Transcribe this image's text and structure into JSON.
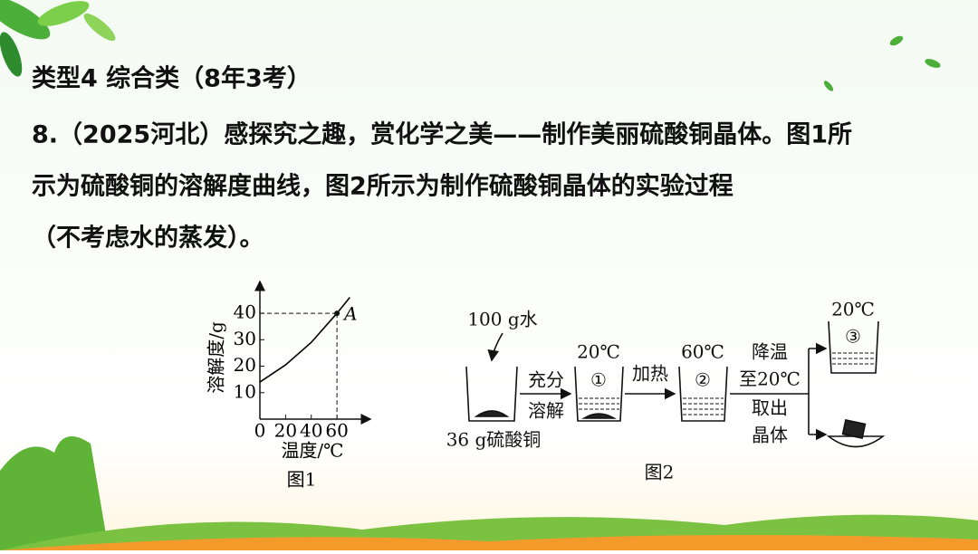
{
  "header": {
    "title": "类型4 综合类（8年3考）"
  },
  "question": {
    "lines": [
      "8.（2025河北）感探究之趣，赏化学之美——制作美丽硫酸铜晶体。图1所",
      "示为硫酸铜的溶解度曲线，图2所示为制作硫酸铜晶体的实验过程",
      "（不考虑水的蒸发）。"
    ]
  },
  "chart_data": {
    "type": "line",
    "x": [
      0,
      20,
      40,
      60,
      70
    ],
    "series": [
      {
        "values": [
          14,
          20.5,
          29,
          40,
          46
        ],
        "color": "#000000"
      }
    ],
    "xlim": [
      0,
      86
    ],
    "ylim": [
      0,
      52
    ],
    "xticks": [
      0,
      20,
      40,
      60
    ],
    "yticks": [
      10,
      20,
      30,
      40
    ],
    "xlabel": "温度/℃",
    "ylabel": "溶解度/g",
    "caption": "图1",
    "annotation": {
      "text": "A",
      "x": 60,
      "y": 40
    }
  },
  "figure2": {
    "water": "100 g水",
    "solute": "36 g硫酸铜",
    "step1_top": "充分",
    "step1_bottom": "溶解",
    "beaker1_temp": "20℃",
    "beaker1_label": "①",
    "step2": "加热",
    "beaker2_temp": "60℃",
    "beaker2_label": "②",
    "step3": [
      "降温",
      "至20℃",
      "取出",
      "晶体"
    ],
    "beaker3_temp": "20℃",
    "beaker3_label": "③",
    "caption": "图2"
  }
}
